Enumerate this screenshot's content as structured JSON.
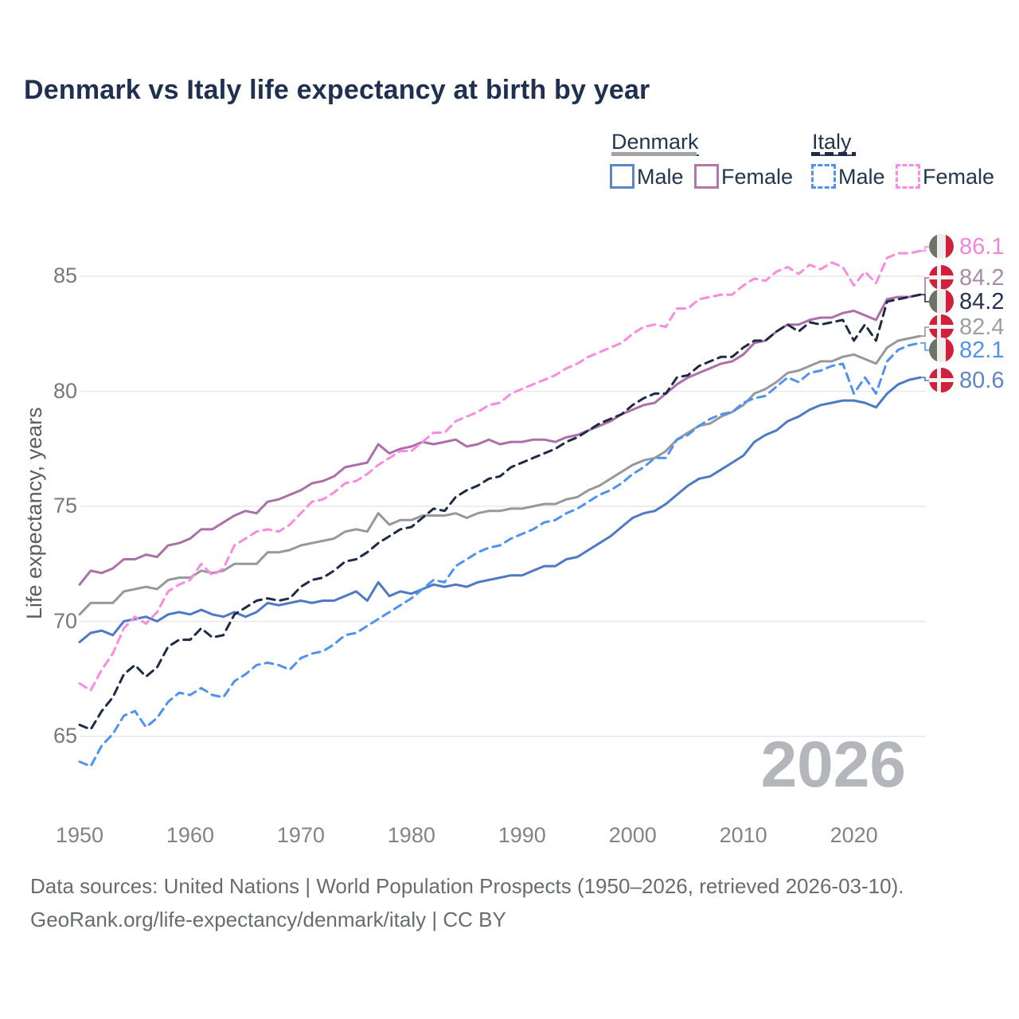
{
  "title": "Denmark vs Italy life expectancy at birth by year",
  "legend": {
    "denmark": {
      "title": "Denmark",
      "male": "Male",
      "female": "Female",
      "male_swatch": "#5b86c8",
      "female_swatch": "#b277ad",
      "header_line": "solid-gray"
    },
    "italy": {
      "title": "Italy",
      "male": "Male",
      "female": "Female",
      "male_swatch": "#4f93f0",
      "female_swatch": "#fb8ce4",
      "header_line": "dashed-navy"
    }
  },
  "y_axis": {
    "label": "Life expectancy, years",
    "ticks": [
      85,
      80,
      75,
      70,
      65
    ],
    "range": [
      63.2,
      86.8
    ]
  },
  "x_axis": {
    "ticks": [
      1950,
      1960,
      1970,
      1980,
      1990,
      2000,
      2010,
      2020
    ],
    "range": [
      1950,
      2026
    ]
  },
  "watermark": "2026",
  "footer": {
    "line1": "Data sources: United Nations | World Population Prospects (1950–2026, retrieved 2026-03-10).",
    "line2": "GeoRank.org/life-expectancy/denmark/italy | CC BY"
  },
  "flag_colors": {
    "denmark": {
      "red": "#d0203c",
      "cross": "#f2f2f2"
    },
    "italy": {
      "green": "#6d7366",
      "white": "#ededed",
      "red": "#d0203c"
    }
  },
  "grid_color": "#e8e8ea",
  "end_labels": [
    {
      "series": "italy-female",
      "flag": "italy",
      "value": "86.1",
      "color": "#f583dd"
    },
    {
      "series": "denmark-female",
      "flag": "denmark",
      "value": "84.2",
      "color": "#a98aa8"
    },
    {
      "series": "italy-all",
      "flag": "italy",
      "value": "84.2",
      "color": "#253351"
    },
    {
      "series": "denmark-all",
      "flag": "denmark",
      "value": "82.4",
      "color": "#9b9fa3"
    },
    {
      "series": "italy-male",
      "flag": "italy",
      "value": "82.1",
      "color": "#4e93f2"
    },
    {
      "series": "denmark-male",
      "flag": "denmark",
      "value": "80.6",
      "color": "#5e85c6"
    }
  ],
  "chart_data": {
    "type": "line",
    "title": "Denmark vs Italy life expectancy at birth by year",
    "xlabel": "",
    "ylabel": "Life expectancy, years",
    "ylim": [
      63.2,
      86.8
    ],
    "x_start": 1950,
    "x_end": 2026,
    "x_step": 1,
    "grid": true,
    "legend_position": "top-right",
    "series": [
      {
        "id": "denmark-all",
        "name": "Denmark",
        "style": "solid",
        "color": "#97989a",
        "end_value": 82.4,
        "values": [
          70.3,
          70.8,
          70.8,
          70.8,
          71.3,
          71.4,
          71.5,
          71.4,
          71.8,
          71.9,
          71.9,
          72.2,
          72.1,
          72.2,
          72.5,
          72.5,
          72.5,
          73.0,
          73.0,
          73.1,
          73.3,
          73.4,
          73.5,
          73.6,
          73.9,
          74.0,
          73.9,
          74.7,
          74.2,
          74.4,
          74.4,
          74.6,
          74.6,
          74.6,
          74.7,
          74.5,
          74.7,
          74.8,
          74.8,
          74.9,
          74.9,
          75.0,
          75.1,
          75.1,
          75.3,
          75.4,
          75.7,
          75.9,
          76.2,
          76.5,
          76.8,
          77.0,
          77.1,
          77.4,
          77.9,
          78.2,
          78.5,
          78.6,
          78.9,
          79.1,
          79.4,
          79.9,
          80.1,
          80.4,
          80.8,
          80.9,
          81.1,
          81.3,
          81.3,
          81.5,
          81.6,
          81.4,
          81.2,
          81.9,
          82.2,
          82.3,
          82.4
        ]
      },
      {
        "id": "denmark-female",
        "name": "Denmark Female",
        "style": "solid",
        "color": "#ad6fa6",
        "end_value": 84.2,
        "values": [
          71.6,
          72.2,
          72.1,
          72.3,
          72.7,
          72.7,
          72.9,
          72.8,
          73.3,
          73.4,
          73.6,
          74.0,
          74.0,
          74.3,
          74.6,
          74.8,
          74.7,
          75.2,
          75.3,
          75.5,
          75.7,
          76.0,
          76.1,
          76.3,
          76.7,
          76.8,
          76.9,
          77.7,
          77.3,
          77.5,
          77.6,
          77.8,
          77.7,
          77.8,
          77.9,
          77.6,
          77.7,
          77.9,
          77.7,
          77.8,
          77.8,
          77.9,
          77.9,
          77.8,
          78.0,
          78.1,
          78.3,
          78.5,
          78.7,
          79.0,
          79.2,
          79.4,
          79.5,
          79.9,
          80.3,
          80.6,
          80.8,
          81.0,
          81.2,
          81.3,
          81.6,
          82.1,
          82.2,
          82.6,
          82.9,
          82.9,
          83.1,
          83.2,
          83.2,
          83.4,
          83.5,
          83.3,
          83.1,
          84.0,
          84.1,
          84.1,
          84.2
        ]
      },
      {
        "id": "denmark-male",
        "name": "Denmark Male",
        "style": "solid",
        "color": "#4e79c5",
        "end_value": 80.6,
        "values": [
          69.1,
          69.5,
          69.6,
          69.4,
          70.0,
          70.1,
          70.2,
          70.0,
          70.3,
          70.4,
          70.3,
          70.5,
          70.3,
          70.2,
          70.4,
          70.2,
          70.4,
          70.8,
          70.7,
          70.8,
          70.9,
          70.8,
          70.9,
          70.9,
          71.1,
          71.3,
          70.9,
          71.7,
          71.1,
          71.3,
          71.2,
          71.4,
          71.6,
          71.5,
          71.6,
          71.5,
          71.7,
          71.8,
          71.9,
          72.0,
          72.0,
          72.2,
          72.4,
          72.4,
          72.7,
          72.8,
          73.1,
          73.4,
          73.7,
          74.1,
          74.5,
          74.7,
          74.8,
          75.1,
          75.5,
          75.9,
          76.2,
          76.3,
          76.6,
          76.9,
          77.2,
          77.8,
          78.1,
          78.3,
          78.7,
          78.9,
          79.2,
          79.4,
          79.5,
          79.6,
          79.6,
          79.5,
          79.3,
          79.9,
          80.3,
          80.5,
          80.6
        ]
      },
      {
        "id": "italy-female",
        "name": "Italy Female",
        "style": "dashed",
        "color": "#fa8ce0",
        "end_value": 86.1,
        "values": [
          67.3,
          67.0,
          67.9,
          68.6,
          69.7,
          70.2,
          69.9,
          70.4,
          71.3,
          71.6,
          71.8,
          72.5,
          72.0,
          72.3,
          73.3,
          73.6,
          73.9,
          74.0,
          73.9,
          74.2,
          74.7,
          75.2,
          75.3,
          75.6,
          76.0,
          76.1,
          76.4,
          76.8,
          77.1,
          77.4,
          77.4,
          77.8,
          78.2,
          78.2,
          78.7,
          78.9,
          79.1,
          79.4,
          79.5,
          79.9,
          80.1,
          80.3,
          80.5,
          80.7,
          81.0,
          81.2,
          81.5,
          81.7,
          81.9,
          82.1,
          82.5,
          82.8,
          82.9,
          82.8,
          83.6,
          83.6,
          84.0,
          84.1,
          84.2,
          84.2,
          84.6,
          84.9,
          84.8,
          85.2,
          85.4,
          85.1,
          85.5,
          85.3,
          85.6,
          85.4,
          84.6,
          85.2,
          84.7,
          85.8,
          86.0,
          86.0,
          86.1
        ]
      },
      {
        "id": "italy-all",
        "name": "Italy",
        "style": "dashed",
        "color": "#1e2b47",
        "end_value": 84.2,
        "values": [
          65.5,
          65.3,
          66.1,
          66.7,
          67.7,
          68.1,
          67.6,
          68.0,
          68.9,
          69.2,
          69.2,
          69.7,
          69.3,
          69.4,
          70.3,
          70.6,
          70.9,
          71.0,
          70.9,
          71.0,
          71.5,
          71.8,
          71.9,
          72.2,
          72.6,
          72.7,
          73.0,
          73.4,
          73.7,
          74.0,
          74.1,
          74.5,
          74.9,
          74.8,
          75.4,
          75.7,
          75.9,
          76.2,
          76.3,
          76.7,
          76.9,
          77.1,
          77.3,
          77.5,
          77.8,
          78.0,
          78.3,
          78.6,
          78.8,
          79.0,
          79.4,
          79.7,
          79.9,
          79.9,
          80.6,
          80.7,
          81.1,
          81.3,
          81.5,
          81.5,
          81.9,
          82.2,
          82.2,
          82.6,
          82.9,
          82.6,
          83.0,
          82.9,
          83.0,
          83.1,
          82.2,
          82.9,
          82.2,
          83.9,
          84.0,
          84.1,
          84.2
        ]
      },
      {
        "id": "italy-male",
        "name": "Italy Male",
        "style": "dashed",
        "color": "#4e93f2",
        "end_value": 82.1,
        "values": [
          63.9,
          63.7,
          64.6,
          65.1,
          65.9,
          66.1,
          65.4,
          65.8,
          66.5,
          66.9,
          66.8,
          67.1,
          66.8,
          66.7,
          67.4,
          67.7,
          68.1,
          68.2,
          68.1,
          67.9,
          68.4,
          68.6,
          68.7,
          69.0,
          69.4,
          69.5,
          69.8,
          70.1,
          70.4,
          70.7,
          71.0,
          71.4,
          71.8,
          71.7,
          72.4,
          72.7,
          73.0,
          73.2,
          73.3,
          73.6,
          73.8,
          74.0,
          74.3,
          74.4,
          74.7,
          74.9,
          75.2,
          75.5,
          75.7,
          76.0,
          76.4,
          76.7,
          77.1,
          77.1,
          77.9,
          78.1,
          78.5,
          78.8,
          79.0,
          79.1,
          79.5,
          79.7,
          79.8,
          80.2,
          80.6,
          80.4,
          80.8,
          80.9,
          81.1,
          81.2,
          79.9,
          80.6,
          79.9,
          81.3,
          81.8,
          82.0,
          82.1
        ]
      }
    ]
  }
}
